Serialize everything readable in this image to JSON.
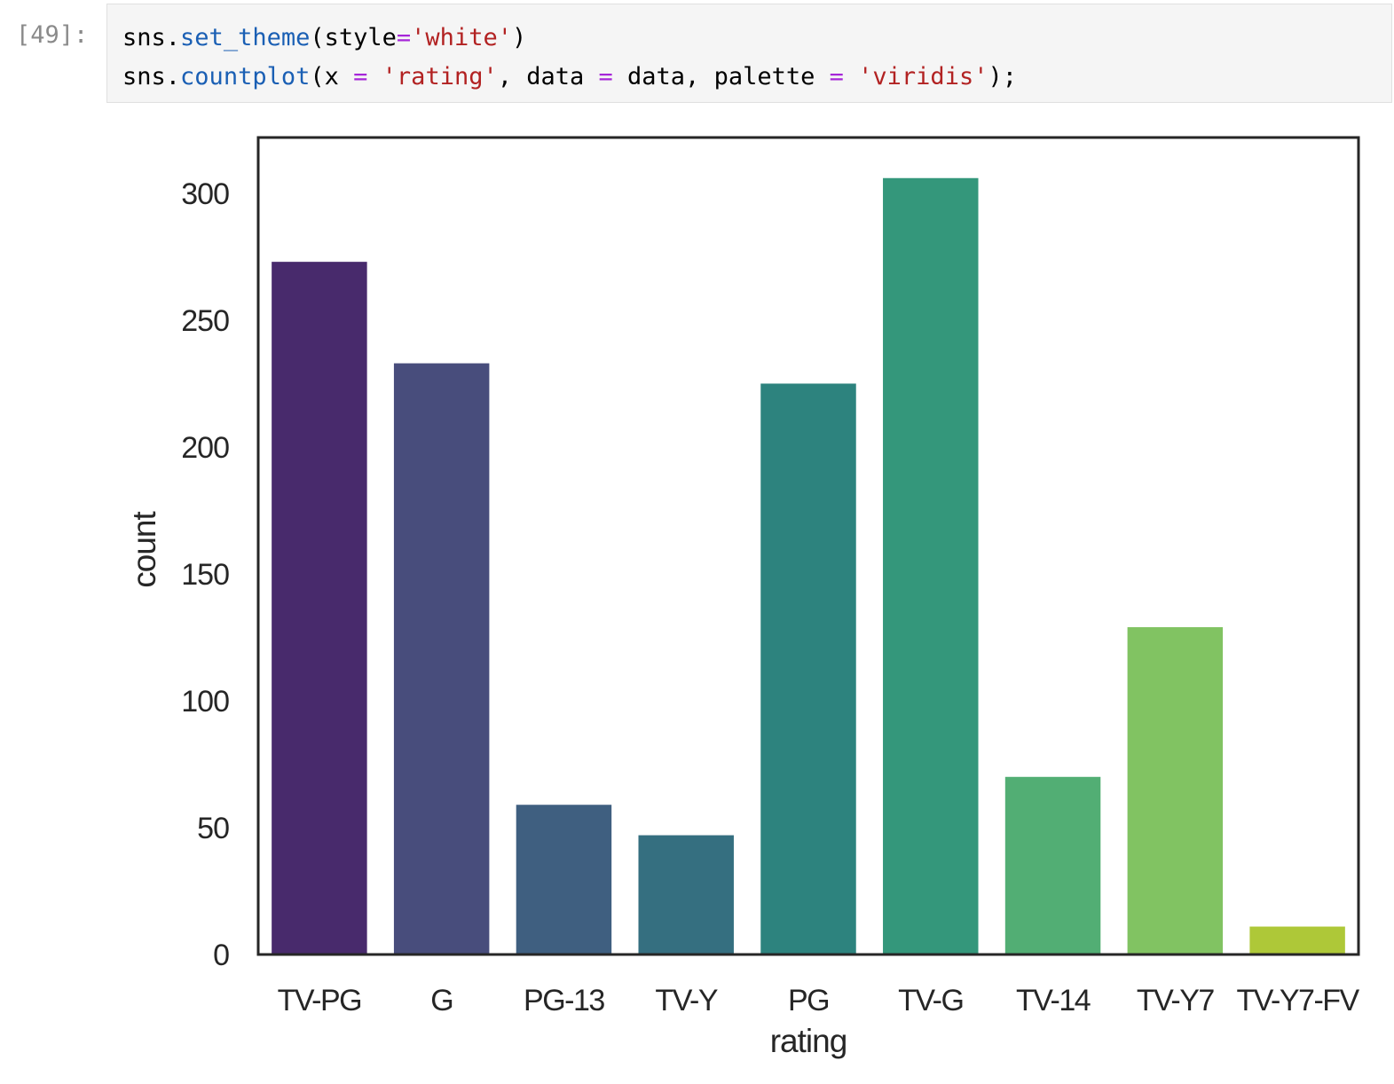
{
  "cell": {
    "prompt": "[49]:",
    "code_lines": [
      [
        {
          "t": "sns",
          "k": "plain"
        },
        {
          "t": ".",
          "k": "plain"
        },
        {
          "t": "set_theme",
          "k": "fn"
        },
        {
          "t": "(style",
          "k": "plain"
        },
        {
          "t": "=",
          "k": "op"
        },
        {
          "t": "'white'",
          "k": "str"
        },
        {
          "t": ")",
          "k": "plain"
        }
      ],
      [
        {
          "t": "sns",
          "k": "plain"
        },
        {
          "t": ".",
          "k": "plain"
        },
        {
          "t": "countplot",
          "k": "fn"
        },
        {
          "t": "(x ",
          "k": "plain"
        },
        {
          "t": "=",
          "k": "op"
        },
        {
          "t": " ",
          "k": "plain"
        },
        {
          "t": "'rating'",
          "k": "str"
        },
        {
          "t": ", data ",
          "k": "plain"
        },
        {
          "t": "=",
          "k": "op"
        },
        {
          "t": " data, palette ",
          "k": "plain"
        },
        {
          "t": "=",
          "k": "op"
        },
        {
          "t": " ",
          "k": "plain"
        },
        {
          "t": "'viridis'",
          "k": "str"
        },
        {
          "t": ");",
          "k": "plain"
        }
      ]
    ]
  },
  "chart_data": {
    "type": "bar",
    "categories": [
      "TV-PG",
      "G",
      "PG-13",
      "TV-Y",
      "PG",
      "TV-G",
      "TV-14",
      "TV-Y7",
      "TV-Y7-FV"
    ],
    "values": [
      273,
      233,
      59,
      47,
      225,
      306,
      70,
      129,
      11
    ],
    "colors": [
      "#482a6c",
      "#484d7c",
      "#3f5f80",
      "#356f80",
      "#2d837e",
      "#34977b",
      "#52ae74",
      "#81c362",
      "#aec838"
    ],
    "xlabel": "rating",
    "ylabel": "count",
    "ylim": [
      0,
      322
    ],
    "yticks": [
      0,
      50,
      100,
      150,
      200,
      250,
      300
    ],
    "grid": false,
    "legend": "none"
  }
}
